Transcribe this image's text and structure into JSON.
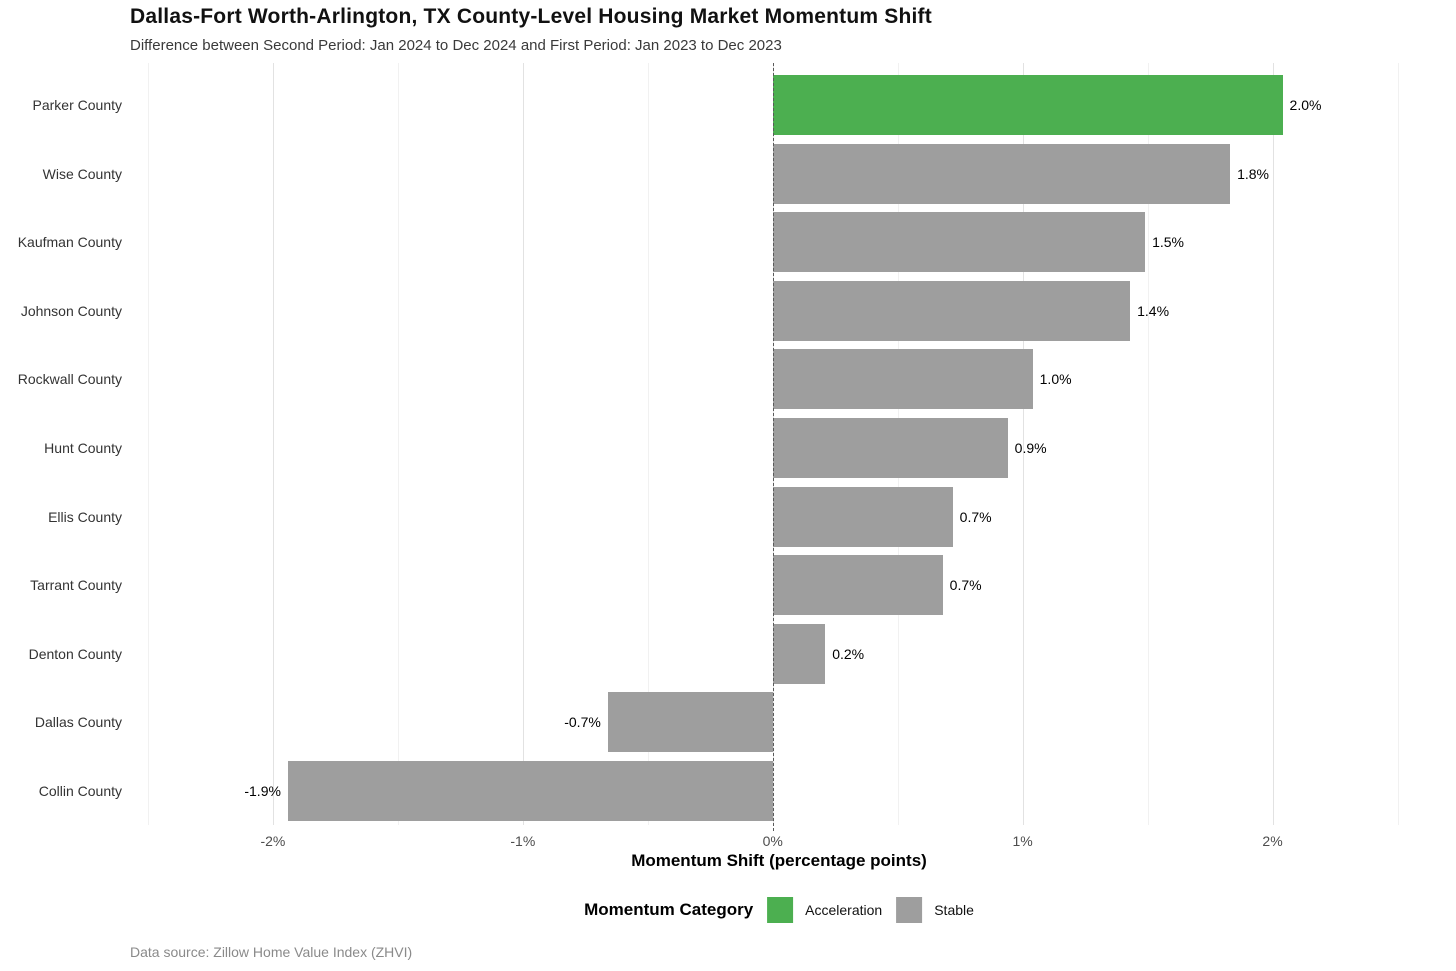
{
  "footer": {
    "text": "Data source: Zillow Home Value Index (ZHVI)"
  },
  "chart_data": {
    "type": "bar",
    "orientation": "horizontal",
    "title": "Dallas-Fort Worth-Arlington, TX County-Level Housing Market Momentum Shift",
    "subtitle": "Difference between Second Period: Jan 2024 to Dec 2024 and First Period: Jan 2023 to Dec 2023",
    "xlabel": "Momentum Shift (percentage points)",
    "categories": [
      "Parker County",
      "Wise County",
      "Kaufman County",
      "Johnson County",
      "Rockwall County",
      "Hunt County",
      "Ellis County",
      "Tarrant County",
      "Denton County",
      "Dallas County",
      "Collin County"
    ],
    "values": [
      2.04,
      1.83,
      1.49,
      1.43,
      1.04,
      0.94,
      0.72,
      0.68,
      0.21,
      -0.66,
      -1.94
    ],
    "value_labels": [
      "2.0%",
      "1.8%",
      "1.5%",
      "1.4%",
      "1.0%",
      "0.9%",
      "0.7%",
      "0.7%",
      "0.2%",
      "-0.7%",
      "-1.9%"
    ],
    "bar_category": [
      "Acceleration",
      "Stable",
      "Stable",
      "Stable",
      "Stable",
      "Stable",
      "Stable",
      "Stable",
      "Stable",
      "Stable",
      "Stable"
    ],
    "xlim": [
      -2.5,
      2.55
    ],
    "x_ticks": [
      {
        "v": -2,
        "label": "-2%"
      },
      {
        "v": -1,
        "label": "-1%"
      },
      {
        "v": 0,
        "label": "0%"
      },
      {
        "v": 1,
        "label": "1%"
      },
      {
        "v": 2,
        "label": "2%"
      }
    ],
    "x_minor_ticks": [
      -2.5,
      -1.5,
      -0.5,
      0.5,
      1.5,
      2.5
    ],
    "zero_reference_line": true,
    "grid": "vertical",
    "legend_position": "bottom",
    "legend": {
      "title": "Momentum Category",
      "items": [
        {
          "label": "Acceleration",
          "color": "#4CAF50"
        },
        {
          "label": "Stable",
          "color": "#9E9E9E"
        }
      ]
    }
  }
}
